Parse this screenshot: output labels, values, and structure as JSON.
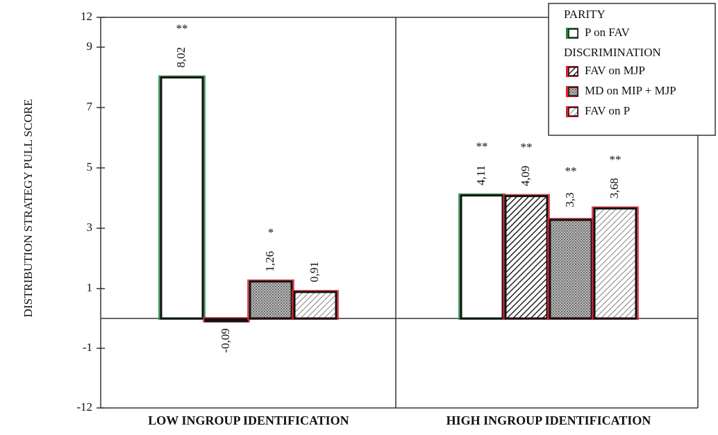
{
  "chart_data": {
    "type": "bar",
    "y_label": "DISTRIBUTION STRATEGY PULL SCORE",
    "categories": [
      "LOW INGROUP IDENTIFICATION",
      "HIGH INGROUP IDENTIFICATION"
    ],
    "legend_groups": [
      "PARITY",
      "DISCRIMINATION"
    ],
    "series": [
      {
        "name": "P on FAV",
        "group": 0,
        "color": "#1e8a3a",
        "pattern": "none",
        "values": [
          8.02,
          4.11
        ],
        "value_labels": [
          "8,02",
          "4,11"
        ],
        "significance": [
          "**",
          "**"
        ]
      },
      {
        "name": "FAV on MJP",
        "group": 1,
        "color": "#e02030",
        "pattern": "hatch",
        "values": [
          -0.09,
          4.09
        ],
        "value_labels": [
          "-0,09",
          "4,09"
        ],
        "significance": [
          null,
          "**"
        ]
      },
      {
        "name": "MD on MIP + MJP",
        "group": 1,
        "color": "#e02030",
        "pattern": "dots",
        "values": [
          1.26,
          3.3
        ],
        "value_labels": [
          "1,26",
          "3,3"
        ],
        "significance": [
          "*",
          "**"
        ]
      },
      {
        "name": "FAV on P",
        "group": 1,
        "color": "#e02030",
        "pattern": "lighthatch",
        "values": [
          0.91,
          3.68
        ],
        "value_labels": [
          "0,91",
          "3,68"
        ],
        "significance": [
          null,
          "**"
        ]
      }
    ],
    "ylim": [
      -12,
      12
    ],
    "yticks": [
      -12,
      -1,
      1,
      3,
      5,
      7,
      9,
      12
    ],
    "axis_break": true,
    "legend": "upper right"
  }
}
